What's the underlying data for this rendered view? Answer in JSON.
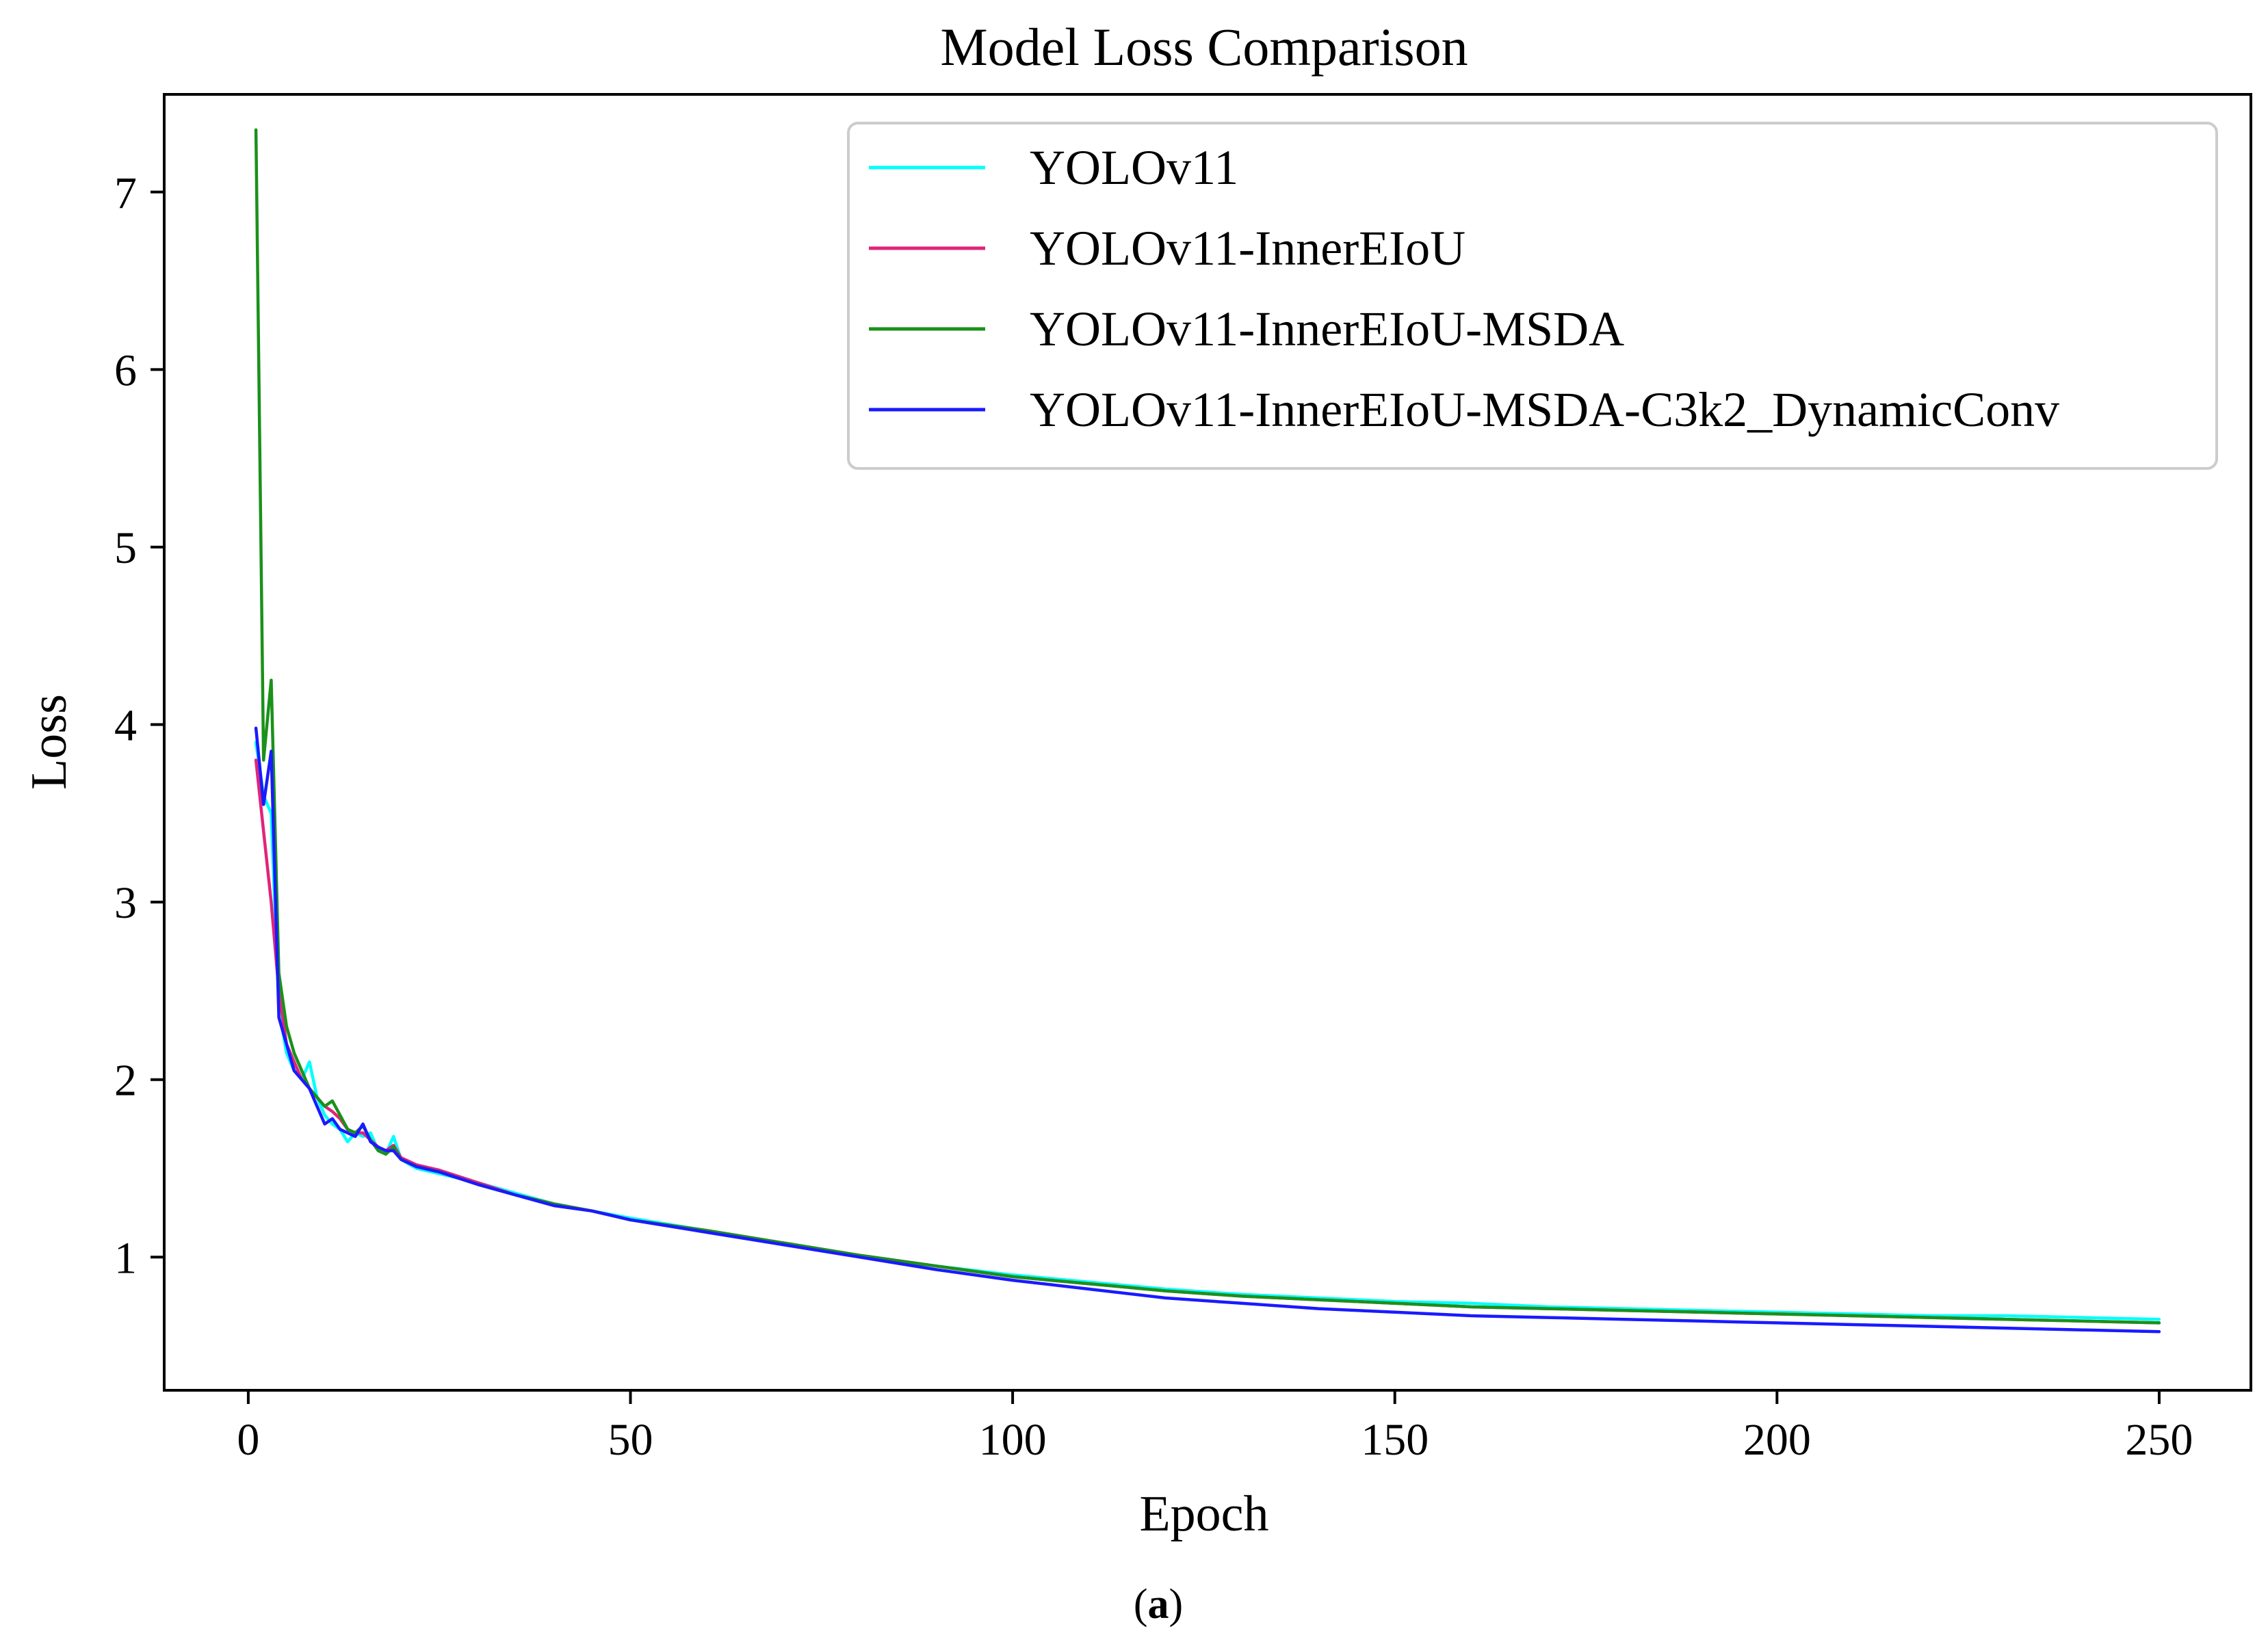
{
  "caption": {
    "open": "(",
    "letter": "a",
    "close": ")"
  },
  "chart_data": {
    "type": "line",
    "title": "Model Loss Comparison",
    "xlabel": "Epoch",
    "ylabel": "Loss",
    "xlim": [
      -11,
      262
    ],
    "ylim": [
      0.25,
      7.55
    ],
    "xticks": [
      0,
      50,
      100,
      150,
      200,
      250
    ],
    "yticks": [
      1,
      2,
      3,
      4,
      5,
      6,
      7
    ],
    "grid": false,
    "legend_position": "top-right",
    "series": [
      {
        "name": "YOLOv11",
        "color": "#00ffff",
        "x": [
          1,
          2,
          3,
          4,
          5,
          6,
          7,
          8,
          9,
          10,
          11,
          12,
          13,
          14,
          15,
          16,
          17,
          18,
          19,
          20,
          22,
          25,
          30,
          35,
          40,
          45,
          50,
          60,
          70,
          80,
          90,
          100,
          110,
          120,
          130,
          140,
          150,
          160,
          170,
          180,
          190,
          200,
          210,
          220,
          230,
          240,
          250
        ],
        "y": [
          3.9,
          3.6,
          3.5,
          2.4,
          2.15,
          2.05,
          2.0,
          2.1,
          1.9,
          1.8,
          1.75,
          1.72,
          1.65,
          1.7,
          1.68,
          1.7,
          1.6,
          1.58,
          1.68,
          1.55,
          1.5,
          1.47,
          1.42,
          1.36,
          1.3,
          1.26,
          1.22,
          1.15,
          1.08,
          1.01,
          0.95,
          0.9,
          0.86,
          0.82,
          0.79,
          0.77,
          0.75,
          0.74,
          0.72,
          0.71,
          0.7,
          0.69,
          0.68,
          0.67,
          0.67,
          0.66,
          0.65
        ]
      },
      {
        "name": "YOLOv11-InnerEIoU",
        "color": "#e0257a",
        "x": [
          1,
          2,
          3,
          4,
          5,
          6,
          7,
          8,
          9,
          10,
          11,
          12,
          13,
          14,
          15,
          16,
          17,
          18,
          19,
          20,
          22,
          25,
          30,
          35,
          40,
          45,
          50,
          60,
          70,
          80,
          90,
          100,
          110,
          120,
          130,
          140,
          150,
          160,
          170,
          180,
          190,
          200,
          210,
          220,
          230,
          240,
          250
        ],
        "y": [
          3.8,
          3.4,
          3.0,
          2.5,
          2.2,
          2.1,
          2.0,
          1.95,
          1.9,
          1.85,
          1.82,
          1.78,
          1.72,
          1.7,
          1.7,
          1.66,
          1.62,
          1.6,
          1.63,
          1.56,
          1.52,
          1.49,
          1.42,
          1.35,
          1.3,
          1.26,
          1.21,
          1.15,
          1.08,
          1.01,
          0.95,
          0.89,
          0.85,
          0.81,
          0.78,
          0.76,
          0.74,
          0.72,
          0.71,
          0.7,
          0.69,
          0.68,
          0.67,
          0.66,
          0.65,
          0.64,
          0.63
        ]
      },
      {
        "name": "YOLOv11-InnerEIoU-MSDA",
        "color": "#1a911a",
        "x": [
          1,
          2,
          3,
          4,
          5,
          6,
          7,
          8,
          9,
          10,
          11,
          12,
          13,
          14,
          15,
          16,
          17,
          18,
          19,
          20,
          22,
          25,
          30,
          35,
          40,
          45,
          50,
          60,
          70,
          80,
          90,
          100,
          110,
          120,
          130,
          140,
          150,
          160,
          170,
          180,
          190,
          200,
          210,
          220,
          230,
          240,
          250
        ],
        "y": [
          7.35,
          3.8,
          4.25,
          2.6,
          2.3,
          2.15,
          2.05,
          1.95,
          1.9,
          1.85,
          1.88,
          1.8,
          1.72,
          1.7,
          1.74,
          1.66,
          1.6,
          1.58,
          1.62,
          1.55,
          1.51,
          1.48,
          1.41,
          1.35,
          1.3,
          1.26,
          1.21,
          1.15,
          1.08,
          1.01,
          0.95,
          0.89,
          0.85,
          0.81,
          0.78,
          0.76,
          0.74,
          0.72,
          0.71,
          0.7,
          0.69,
          0.68,
          0.67,
          0.66,
          0.65,
          0.64,
          0.63
        ]
      },
      {
        "name": "YOLOv11-InnerEIoU-MSDA-C3k2_DynamicConv",
        "color": "#1a1aff",
        "x": [
          1,
          2,
          3,
          4,
          5,
          6,
          7,
          8,
          9,
          10,
          11,
          12,
          13,
          14,
          15,
          16,
          17,
          18,
          19,
          20,
          22,
          25,
          30,
          35,
          40,
          45,
          50,
          60,
          70,
          80,
          90,
          100,
          110,
          120,
          130,
          140,
          150,
          160,
          170,
          180,
          190,
          200,
          210,
          220,
          230,
          240,
          250
        ],
        "y": [
          3.98,
          3.55,
          3.85,
          2.35,
          2.2,
          2.05,
          2.0,
          1.95,
          1.85,
          1.75,
          1.78,
          1.72,
          1.7,
          1.68,
          1.75,
          1.65,
          1.62,
          1.6,
          1.6,
          1.55,
          1.51,
          1.48,
          1.41,
          1.35,
          1.29,
          1.26,
          1.21,
          1.14,
          1.07,
          1.0,
          0.93,
          0.87,
          0.82,
          0.77,
          0.74,
          0.71,
          0.69,
          0.67,
          0.66,
          0.65,
          0.64,
          0.63,
          0.62,
          0.61,
          0.6,
          0.59,
          0.58
        ]
      }
    ]
  }
}
